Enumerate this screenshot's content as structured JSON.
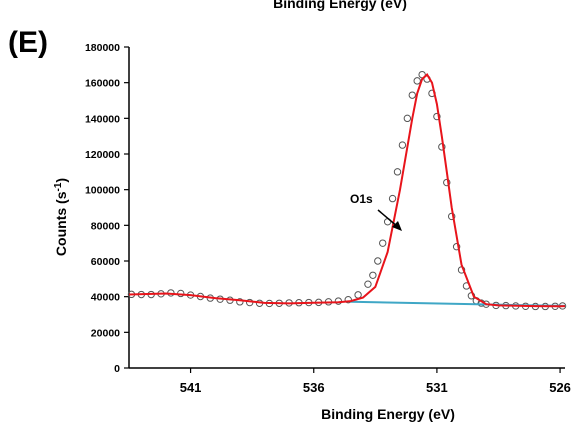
{
  "panel_label": "(E)",
  "top_cut_label": "Binding Energy (eV)",
  "chart_data": {
    "type": "scatter",
    "xlabel": "Binding Energy (eV)",
    "ylabel_main": "Counts (s",
    "ylabel_sup": "-1",
    "ylabel_close": ")",
    "xlim": [
      543.5,
      525.8
    ],
    "ylim": [
      0,
      180000
    ],
    "x_reversed": true,
    "x_ticks": [
      541,
      536,
      531,
      526
    ],
    "x_tick_labels": [
      "541",
      "536",
      "531",
      "526"
    ],
    "y_ticks": [
      0,
      20000,
      40000,
      60000,
      80000,
      100000,
      120000,
      140000,
      160000,
      180000
    ],
    "y_tick_labels": [
      "0",
      "20000",
      "40000",
      "60000",
      "80000",
      "100000",
      "120000",
      "140000",
      "160000",
      "180000"
    ],
    "grid": false,
    "annotation": {
      "text": "O1s",
      "x": 531.8,
      "y": 83000
    },
    "series": [
      {
        "kind": "points",
        "color": "#555555",
        "x": [
          543.4,
          543,
          542.6,
          542.2,
          541.8,
          541.4,
          541,
          540.6,
          540.2,
          539.8,
          539.4,
          539,
          538.6,
          538.2,
          537.8,
          537.4,
          537,
          536.6,
          536.2,
          535.8,
          535.4,
          535,
          534.6,
          534.2,
          533.8,
          533.6,
          533.4,
          533.2,
          533,
          532.8,
          532.6,
          532.4,
          532.2,
          532,
          531.8,
          531.6,
          531.4,
          531.2,
          531,
          530.8,
          530.6,
          530.4,
          530.2,
          530,
          529.8,
          529.6,
          529.4,
          529.2,
          529,
          528.6,
          528.2,
          527.8,
          527.4,
          527,
          526.6,
          526.2,
          525.9
        ],
        "y": [
          41300,
          41200,
          41200,
          41600,
          42100,
          41800,
          40900,
          40100,
          39200,
          38600,
          38000,
          37100,
          36700,
          36300,
          36200,
          36300,
          36500,
          36600,
          36700,
          36800,
          37100,
          37500,
          38300,
          41000,
          47000,
          52000,
          60000,
          70000,
          82000,
          95000,
          110000,
          125000,
          140000,
          153000,
          161000,
          164500,
          162000,
          154000,
          141000,
          124000,
          104000,
          85000,
          68000,
          55000,
          46000,
          40500,
          37700,
          36400,
          35800,
          35100,
          35000,
          34800,
          34600,
          34500,
          34500,
          34600,
          34800
        ]
      },
      {
        "kind": "fit",
        "color": "#e8141b",
        "x": [
          543.5,
          542,
          541,
          540,
          539,
          538,
          537,
          536,
          535,
          534.5,
          534,
          533.5,
          533,
          532.5,
          532,
          531.8,
          531.6,
          531.4,
          531.2,
          531,
          530.8,
          530.6,
          530.4,
          530,
          529.5,
          529,
          528.5,
          528,
          527,
          526,
          525.8
        ],
        "y": [
          41200,
          41800,
          40900,
          39200,
          38000,
          36500,
          36200,
          36600,
          36900,
          37500,
          39500,
          45500,
          65000,
          100000,
          140000,
          154000,
          162000,
          164500,
          160000,
          148000,
          130000,
          110000,
          90000,
          58000,
          40000,
          35800,
          35100,
          35000,
          34700,
          34600,
          34700
        ]
      },
      {
        "kind": "background",
        "color": "#3fa7c6",
        "x": [
          534.5,
          527.5,
          525.8
        ],
        "y": [
          37200,
          35200,
          34800
        ]
      }
    ]
  }
}
